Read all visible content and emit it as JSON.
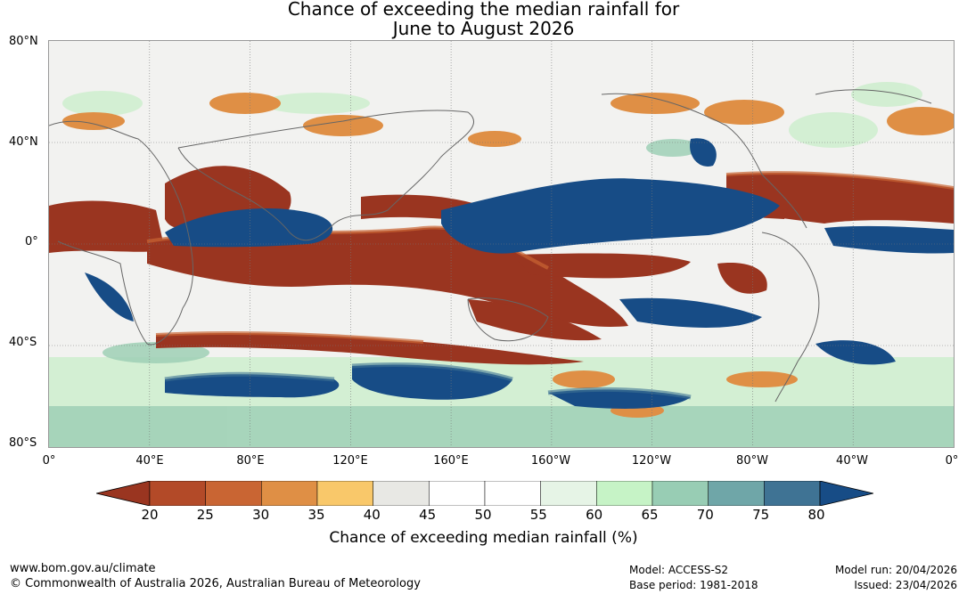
{
  "title": {
    "line1": "Chance of exceeding the median rainfall for",
    "line2": "June to August 2026"
  },
  "map": {
    "lat_labels": [
      "80°N",
      "40°N",
      "0°",
      "40°S",
      "80°S"
    ],
    "lon_labels": [
      "0°",
      "40°E",
      "80°E",
      "120°E",
      "160°E",
      "160°W",
      "120°W",
      "80°W",
      "40°W",
      "0°"
    ],
    "grid": true
  },
  "colorbar": {
    "label": "Chance of exceeding median rainfall (%)",
    "ticks": [
      "20",
      "25",
      "30",
      "35",
      "40",
      "45",
      "50",
      "55",
      "60",
      "65",
      "70",
      "75",
      "80"
    ],
    "colors": [
      "#9a3520",
      "#b34a28",
      "#c96533",
      "#df8f45",
      "#f9c86a",
      "#e8e8e4",
      "#ffffff",
      "#ffffff",
      "#e6f4e6",
      "#c6f3c6",
      "#98cdb4",
      "#6fa6a8",
      "#3f7394",
      "#174c86"
    ],
    "extend": "both"
  },
  "footer": {
    "website": "www.bom.gov.au/climate",
    "copyright": "© Commonwealth of Australia 2026, Australian Bureau of Meteorology",
    "model": "Model: ACCESS-S2",
    "base_period": "Base period: 1981-2018",
    "model_run": "Model run: 20/04/2026",
    "issued": "Issued: 23/04/2026"
  }
}
